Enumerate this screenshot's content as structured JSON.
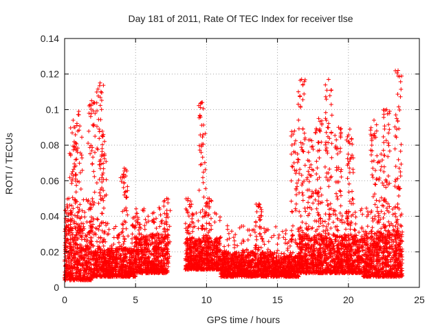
{
  "chart_data": {
    "type": "scatter",
    "title": "Day 181 of 2011, Rate Of TEC Index for receiver tlse",
    "xlabel": "GPS time / hours",
    "ylabel": "ROTI / TECUs",
    "xlim": [
      0,
      25
    ],
    "ylim": [
      0,
      0.14
    ],
    "x_ticks": [
      0,
      5,
      10,
      15,
      20,
      25
    ],
    "x_tick_labels": [
      "0",
      "5",
      "10",
      "15",
      "20",
      "25"
    ],
    "y_ticks": [
      0,
      0.02,
      0.04,
      0.06,
      0.08,
      0.1,
      0.12,
      0.14
    ],
    "y_tick_labels": [
      "0",
      "0.02",
      "0.04",
      "0.06",
      "0.08",
      "0.1",
      "0.12",
      "0.14"
    ],
    "grid": true,
    "marker": "+",
    "marker_color": "#ff0000",
    "series": [
      {
        "name": "ROTI",
        "approx_point_count": 6000,
        "coverage_hours": [
          [
            0.0,
            7.3
          ],
          [
            8.5,
            23.8
          ]
        ],
        "typical_value": 0.012,
        "density_bands": [
          {
            "x_range": [
              0.0,
              2.0
            ],
            "low": 0.004,
            "high": 0.035
          },
          {
            "x_range": [
              2.0,
              5.0
            ],
            "low": 0.006,
            "high": 0.022
          },
          {
            "x_range": [
              5.0,
              7.3
            ],
            "low": 0.008,
            "high": 0.03
          },
          {
            "x_range": [
              8.5,
              11.0
            ],
            "low": 0.01,
            "high": 0.028
          },
          {
            "x_range": [
              11.0,
              15.0
            ],
            "low": 0.006,
            "high": 0.02
          },
          {
            "x_range": [
              15.0,
              16.5
            ],
            "low": 0.006,
            "high": 0.018
          },
          {
            "x_range": [
              16.5,
              21.0
            ],
            "low": 0.008,
            "high": 0.03
          },
          {
            "x_range": [
              21.0,
              23.8
            ],
            "low": 0.006,
            "high": 0.032
          }
        ],
        "spikes": [
          {
            "x": 0.3,
            "peak": 0.05
          },
          {
            "x": 0.6,
            "peak": 0.094
          },
          {
            "x": 1.0,
            "peak": 0.099
          },
          {
            "x": 1.9,
            "peak": 0.105
          },
          {
            "x": 2.5,
            "peak": 0.115
          },
          {
            "x": 2.7,
            "peak": 0.085
          },
          {
            "x": 4.2,
            "peak": 0.067
          },
          {
            "x": 5.0,
            "peak": 0.04
          },
          {
            "x": 7.2,
            "peak": 0.05
          },
          {
            "x": 8.7,
            "peak": 0.05
          },
          {
            "x": 9.7,
            "peak": 0.104
          },
          {
            "x": 10.1,
            "peak": 0.05
          },
          {
            "x": 13.7,
            "peak": 0.047
          },
          {
            "x": 16.2,
            "peak": 0.088
          },
          {
            "x": 16.7,
            "peak": 0.117
          },
          {
            "x": 17.3,
            "peak": 0.083
          },
          {
            "x": 17.9,
            "peak": 0.095
          },
          {
            "x": 18.6,
            "peak": 0.117
          },
          {
            "x": 19.3,
            "peak": 0.09
          },
          {
            "x": 20.1,
            "peak": 0.089
          },
          {
            "x": 21.8,
            "peak": 0.094
          },
          {
            "x": 22.3,
            "peak": 0.075
          },
          {
            "x": 22.7,
            "peak": 0.1
          },
          {
            "x": 23.5,
            "peak": 0.122
          }
        ]
      }
    ]
  }
}
